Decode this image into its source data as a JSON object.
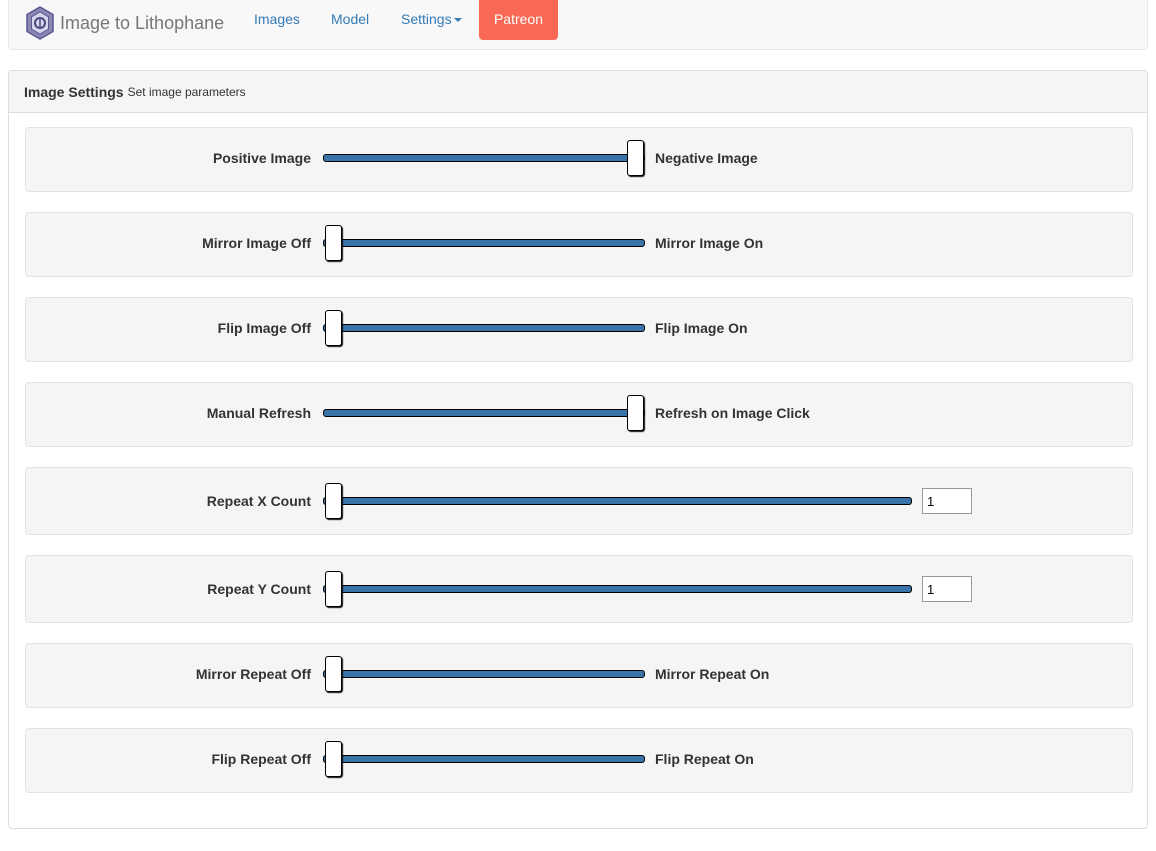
{
  "navbar": {
    "brand": "Image to Lithophane",
    "links": [
      "Images",
      "Model"
    ],
    "settings": "Settings",
    "patreon": "Patreon"
  },
  "panel": {
    "title": "Image Settings",
    "subtitle": "Set image parameters"
  },
  "rows": {
    "positive_negative": {
      "left": "Positive Image",
      "right": "Negative Image",
      "value": 1
    },
    "mirror_image": {
      "left": "Mirror Image Off",
      "right": "Mirror Image On",
      "value": 0
    },
    "flip_image": {
      "left": "Flip Image Off",
      "right": "Flip Image On",
      "value": 0
    },
    "refresh": {
      "left": "Manual Refresh",
      "right": "Refresh on Image Click",
      "value": 1
    },
    "repeat_x": {
      "left": "Repeat X Count",
      "input": "1",
      "value": 0
    },
    "repeat_y": {
      "left": "Repeat Y Count",
      "input": "1",
      "value": 0
    },
    "mirror_repeat": {
      "left": "Mirror Repeat Off",
      "right": "Mirror Repeat On",
      "value": 0
    },
    "flip_repeat": {
      "left": "Flip Repeat Off",
      "right": "Flip Repeat On",
      "value": 0
    }
  }
}
